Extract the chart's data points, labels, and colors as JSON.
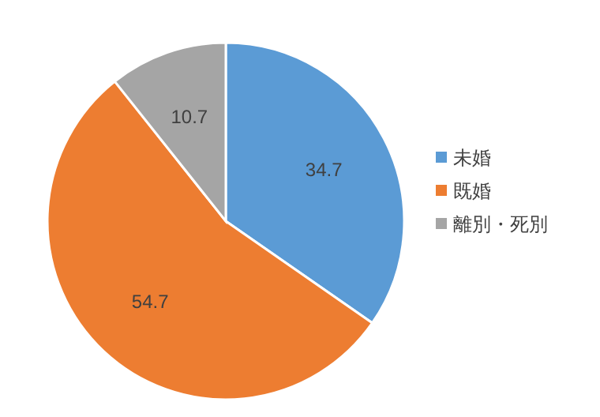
{
  "chart_data": {
    "type": "pie",
    "categories": [
      "未婚",
      "既婚",
      "離別・死別"
    ],
    "values": [
      34.7,
      54.7,
      10.7
    ],
    "colors": [
      "#5b9bd5",
      "#ed7d31",
      "#a5a5a5"
    ],
    "data_labels": true,
    "legend": "right"
  }
}
